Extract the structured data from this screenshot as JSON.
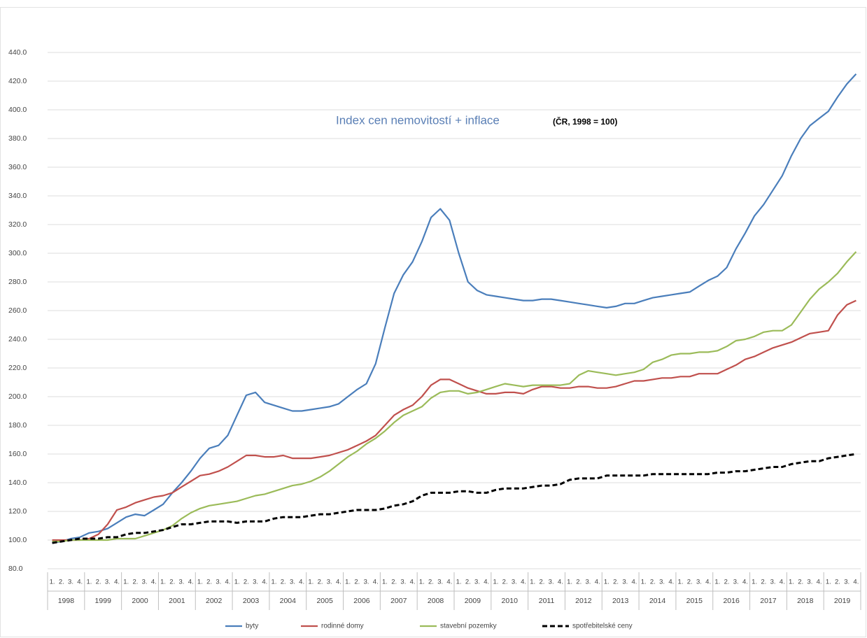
{
  "chart_data": {
    "type": "line",
    "title": "Index cen nemovitostí + inflace",
    "subtitle": "(ČR, 1998 = 100)",
    "categories": [
      "1.",
      "2.",
      "3.",
      "4.",
      "1.",
      "2.",
      "3.",
      "4.",
      "1.",
      "2.",
      "3.",
      "4.",
      "1.",
      "2.",
      "3.",
      "4.",
      "1.",
      "2.",
      "3.",
      "4.",
      "1.",
      "2.",
      "3.",
      "4.",
      "1.",
      "2.",
      "3.",
      "4.",
      "1.",
      "2.",
      "3.",
      "4.",
      "1.",
      "2.",
      "3.",
      "4.",
      "1.",
      "2.",
      "3.",
      "4.",
      "1.",
      "2.",
      "3.",
      "4.",
      "1.",
      "2.",
      "3.",
      "4.",
      "1.",
      "2.",
      "3.",
      "4.",
      "1.",
      "2.",
      "3.",
      "4.",
      "1.",
      "2.",
      "3.",
      "4.",
      "1.",
      "2.",
      "3.",
      "4.",
      "1.",
      "2.",
      "3.",
      "4.",
      "1.",
      "2.",
      "3.",
      "4.",
      "1.",
      "2.",
      "3.",
      "4.",
      "1.",
      "2.",
      "3.",
      "4.",
      "1.",
      "2.",
      "3.",
      "4.",
      "1.",
      "2.",
      "3.",
      "4."
    ],
    "years": [
      "1998",
      "1999",
      "2000",
      "2001",
      "2002",
      "2003",
      "2004",
      "2005",
      "2006",
      "2007",
      "2008",
      "2009",
      "2010",
      "2011",
      "2012",
      "2013",
      "2014",
      "2015",
      "2016",
      "2017",
      "2018",
      "2019"
    ],
    "ylim": [
      80,
      440
    ],
    "yticks": [
      {
        "value": 80,
        "label": "80.0"
      },
      {
        "value": 100,
        "label": "100.0"
      },
      {
        "value": 120,
        "label": "120.0"
      },
      {
        "value": 140,
        "label": "140.0"
      },
      {
        "value": 160,
        "label": "160.0"
      },
      {
        "value": 180,
        "label": "180.0"
      },
      {
        "value": 200,
        "label": "200.0"
      },
      {
        "value": 220,
        "label": "220.0"
      },
      {
        "value": 240,
        "label": "240.0"
      },
      {
        "value": 260,
        "label": "260.0"
      },
      {
        "value": 280,
        "label": "280.0"
      },
      {
        "value": 300,
        "label": "300.0"
      },
      {
        "value": 320,
        "label": "320.0"
      },
      {
        "value": 340,
        "label": "340.0"
      },
      {
        "value": 360,
        "label": "360.0"
      },
      {
        "value": 380,
        "label": "380.0"
      },
      {
        "value": 400,
        "label": "400.0"
      },
      {
        "value": 420,
        "label": "420.0"
      },
      {
        "value": 440,
        "label": "440.0"
      }
    ],
    "grid": true,
    "legend": "bottom",
    "series": [
      {
        "name": "byty",
        "color": "#4a7ebb",
        "dash": false,
        "values": [
          98,
          99,
          101,
          102,
          105,
          106,
          108,
          112,
          116,
          118,
          117,
          121,
          125,
          133,
          140,
          148,
          157,
          164,
          166,
          173,
          187,
          201,
          203,
          196,
          194,
          192,
          190,
          190,
          191,
          192,
          193,
          195,
          200,
          205,
          209,
          223,
          248,
          272,
          285,
          294,
          308,
          325,
          331,
          323,
          300,
          280,
          274,
          271,
          270,
          269,
          268,
          267,
          267,
          268,
          268,
          267,
          266,
          265,
          264,
          263,
          262,
          263,
          265,
          265,
          267,
          269,
          270,
          271,
          272,
          273,
          277,
          281,
          284,
          290,
          303,
          314,
          326,
          334,
          344,
          354,
          368,
          380,
          389,
          394,
          399,
          409,
          418,
          425
        ]
      },
      {
        "name": "rodinné domy",
        "color": "#c0504d",
        "dash": false,
        "values": [
          100,
          100,
          100,
          100,
          101,
          104,
          111,
          121,
          123,
          126,
          128,
          130,
          131,
          133,
          137,
          141,
          145,
          146,
          148,
          151,
          155,
          159,
          159,
          158,
          158,
          159,
          157,
          157,
          157,
          158,
          159,
          161,
          163,
          166,
          169,
          173,
          180,
          187,
          191,
          194,
          200,
          208,
          212,
          212,
          209,
          206,
          204,
          202,
          202,
          203,
          203,
          202,
          205,
          207,
          207,
          206,
          206,
          207,
          207,
          206,
          206,
          207,
          209,
          211,
          211,
          212,
          213,
          213,
          214,
          214,
          216,
          216,
          216,
          219,
          222,
          226,
          228,
          231,
          234,
          236,
          238,
          241,
          244,
          245,
          246,
          257,
          264,
          267
        ]
      },
      {
        "name": "stavební pozemky",
        "color": "#9bbb59",
        "dash": false,
        "values": [
          99,
          99,
          100,
          100,
          100,
          100,
          100,
          101,
          101,
          101,
          103,
          105,
          107,
          110,
          115,
          119,
          122,
          124,
          125,
          126,
          127,
          129,
          131,
          132,
          134,
          136,
          138,
          139,
          141,
          144,
          148,
          153,
          158,
          162,
          167,
          171,
          176,
          182,
          187,
          190,
          193,
          199,
          203,
          204,
          204,
          202,
          203,
          205,
          207,
          209,
          208,
          207,
          208,
          208,
          208,
          208,
          209,
          215,
          218,
          217,
          216,
          215,
          216,
          217,
          219,
          224,
          226,
          229,
          230,
          230,
          231,
          231,
          232,
          235,
          239,
          240,
          242,
          245,
          246,
          246,
          250,
          259,
          268,
          275,
          280,
          286,
          294,
          301
        ]
      },
      {
        "name": "spotřebitelské ceny",
        "color": "#000000",
        "dash": true,
        "values": [
          98,
          99,
          100,
          101,
          101,
          101,
          102,
          102,
          104,
          105,
          105,
          106,
          107,
          109,
          111,
          111,
          112,
          113,
          113,
          113,
          112,
          113,
          113,
          113,
          115,
          116,
          116,
          116,
          117,
          118,
          118,
          119,
          120,
          121,
          121,
          121,
          122,
          124,
          125,
          127,
          131,
          133,
          133,
          133,
          134,
          134,
          133,
          133,
          135,
          136,
          136,
          136,
          137,
          138,
          138,
          139,
          142,
          143,
          143,
          143,
          145,
          145,
          145,
          145,
          145,
          146,
          146,
          146,
          146,
          146,
          146,
          146,
          147,
          147,
          148,
          148,
          149,
          150,
          151,
          151,
          153,
          154,
          155,
          155,
          157,
          158,
          159,
          160
        ]
      }
    ]
  }
}
